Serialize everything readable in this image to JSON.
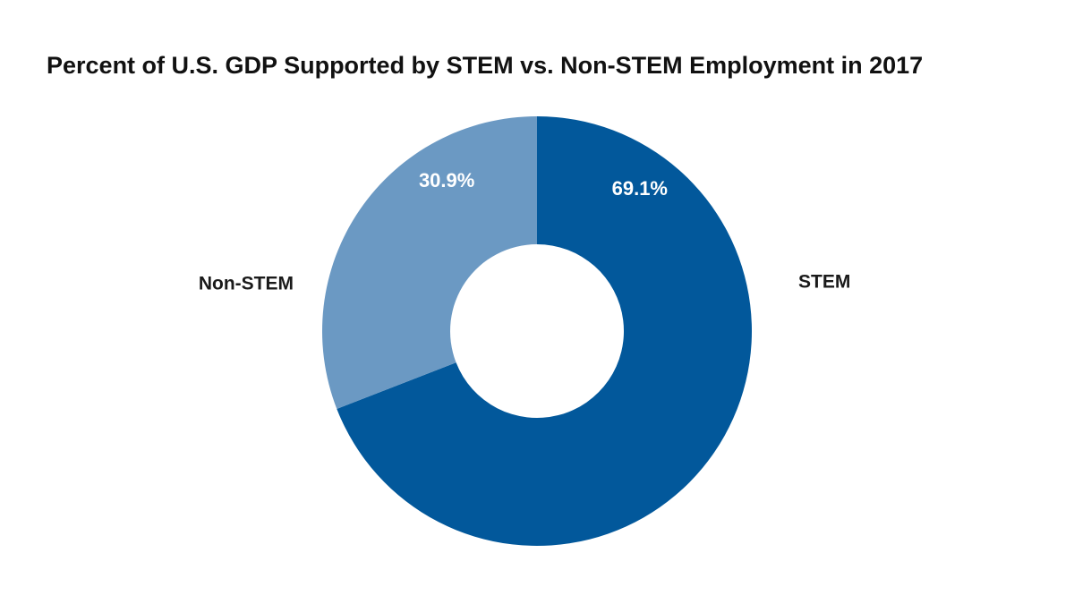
{
  "chart_data": {
    "type": "pie",
    "variant": "donut",
    "title": "Percent of U.S. GDP Supported by STEM vs. Non-STEM Employment in 2017",
    "categories": [
      "STEM",
      "Non-STEM"
    ],
    "values": [
      69.1,
      30.9
    ],
    "data_labels": [
      "69.1%",
      "30.9%"
    ],
    "colors": [
      "#02589b",
      "#6b99c3"
    ],
    "start": "12 o'clock, clockwise",
    "legend": "none (category labels beside slices)"
  }
}
